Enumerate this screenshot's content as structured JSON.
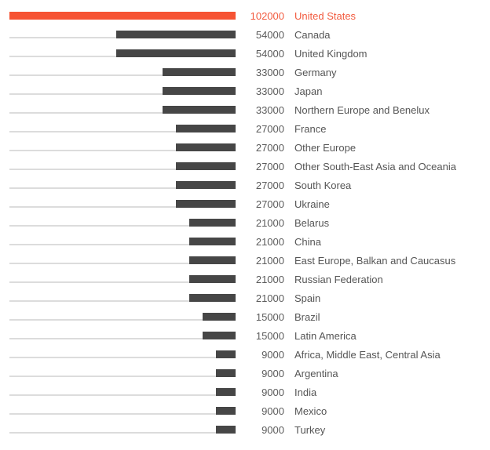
{
  "chart_data": {
    "type": "bar",
    "orientation": "horizontal",
    "title": "",
    "xlabel": "",
    "ylabel": "",
    "xlim": [
      0,
      102000
    ],
    "grid": false,
    "legend": false,
    "bar_right_aligned": true,
    "highlight_index": 0,
    "categories": [
      "United States",
      "Canada",
      "United Kingdom",
      "Germany",
      "Japan",
      "Northern Europe and Benelux",
      "France",
      "Other Europe",
      "Other South-East Asia and Oceania",
      "South Korea",
      "Ukraine",
      "Belarus",
      "China",
      "East Europe, Balkan and Caucasus",
      "Russian Federation",
      "Spain",
      "Brazil",
      "Latin America",
      "Africa, Middle East, Central Asia",
      "Argentina",
      "India",
      "Mexico",
      "Turkey"
    ],
    "values": [
      102000,
      54000,
      54000,
      33000,
      33000,
      33000,
      27000,
      27000,
      27000,
      27000,
      27000,
      21000,
      21000,
      21000,
      21000,
      21000,
      15000,
      15000,
      9000,
      9000,
      9000,
      9000,
      9000
    ],
    "colors": {
      "highlight_bar": "#f65333",
      "highlight_text": "#f25b3f",
      "bar": "#464646",
      "track": "#dcdcdc",
      "value_text": "#5c5c5c",
      "label_text": "#555555",
      "background": "#ffffff"
    }
  }
}
